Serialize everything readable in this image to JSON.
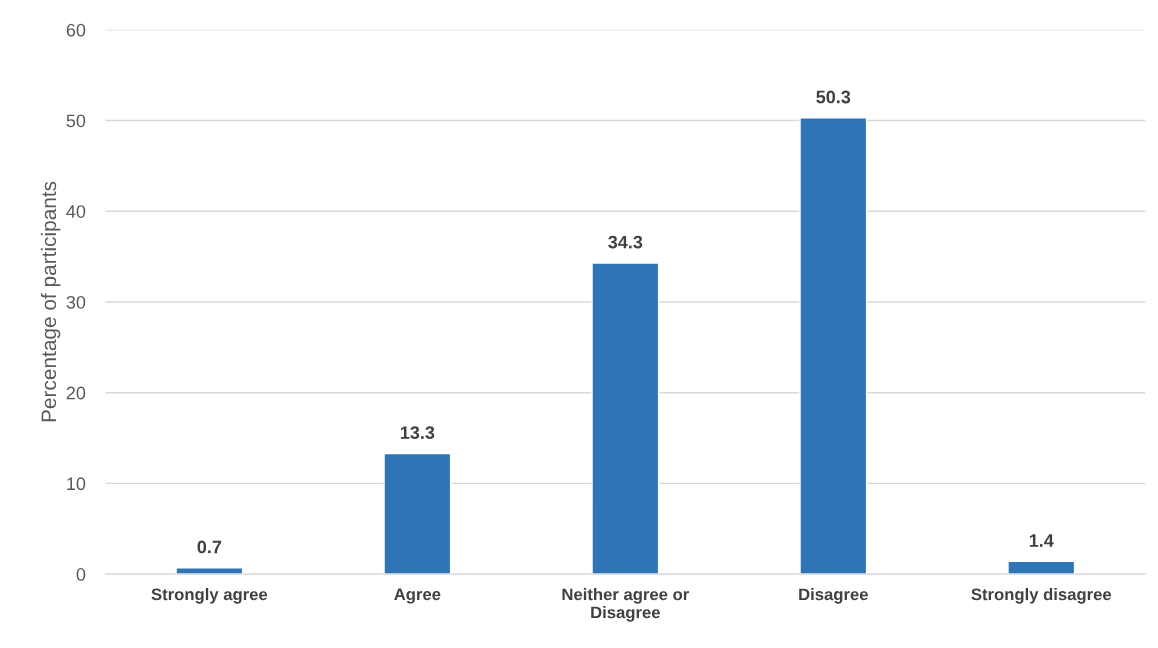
{
  "chart_data": {
    "type": "bar",
    "ylabel": "Percentage of participants",
    "categories": [
      "Strongly agree",
      "Agree",
      "Neither agree or\nDisagree",
      "Disagree",
      "Strongly disagree"
    ],
    "values": [
      0.7,
      13.3,
      34.3,
      50.3,
      1.4
    ],
    "color": "#2e75b6",
    "ylim": [
      0,
      60
    ],
    "yticks": [
      0,
      10,
      20,
      30,
      40,
      50,
      60
    ],
    "grid": "y",
    "data_labels": true,
    "legend": false
  }
}
